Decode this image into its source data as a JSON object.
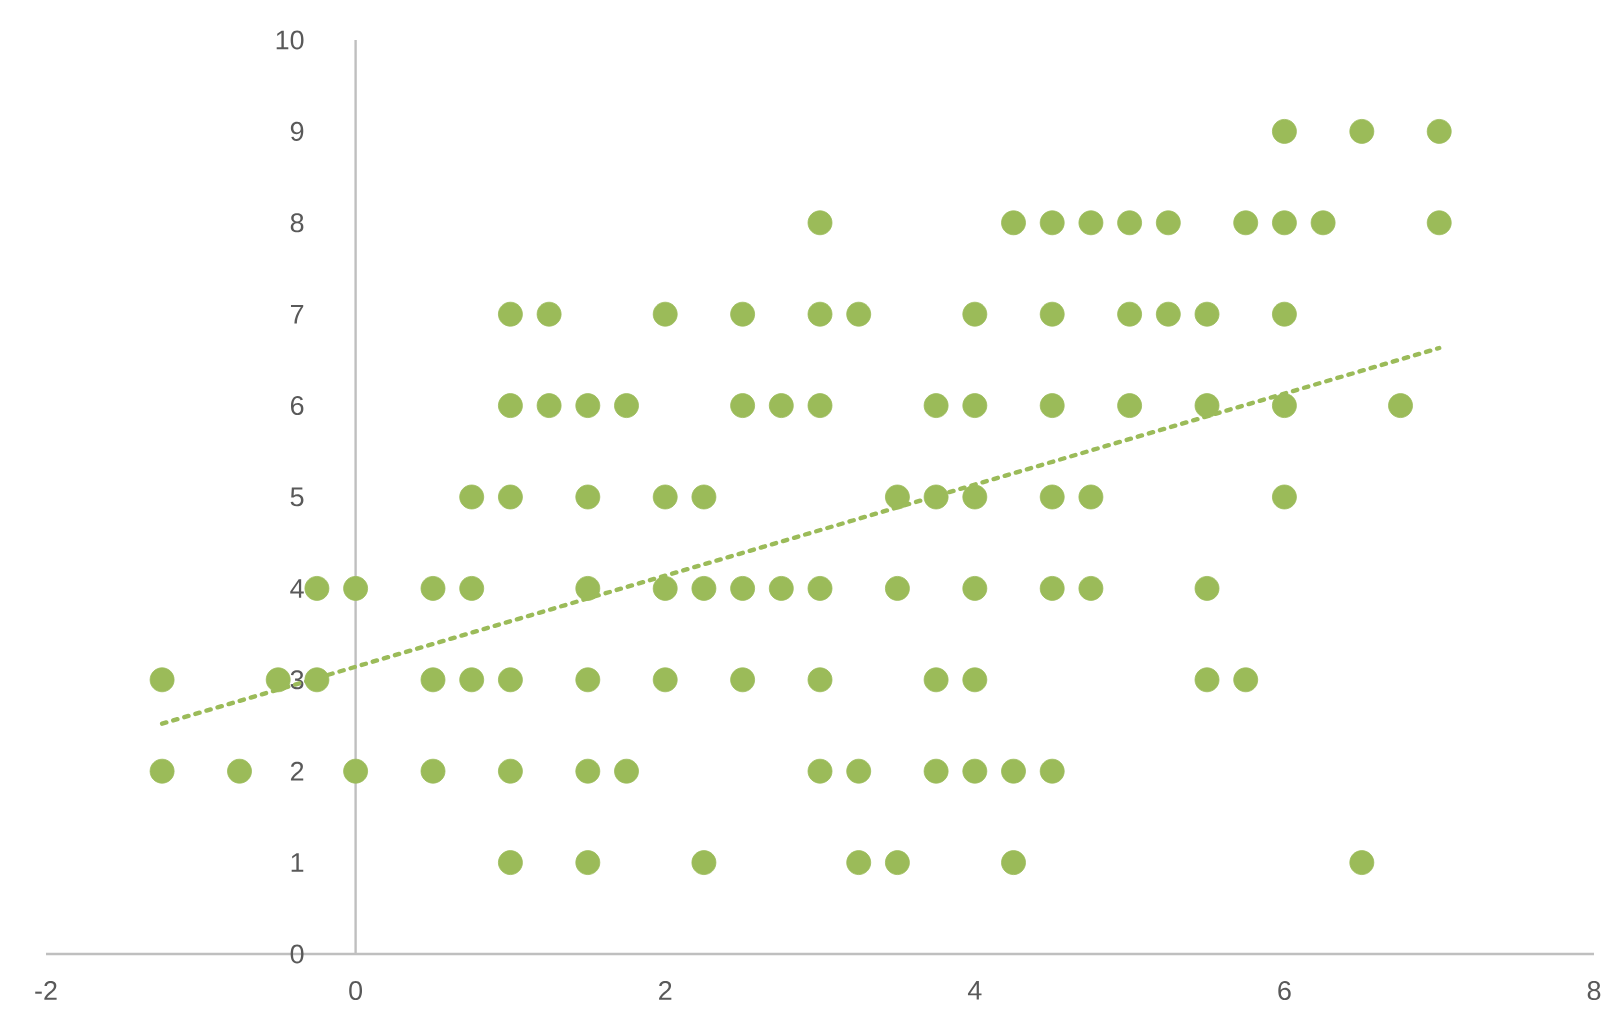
{
  "chart_data": {
    "type": "scatter",
    "xlim": [
      -2,
      8
    ],
    "ylim": [
      0,
      10
    ],
    "xticks": [
      -2,
      0,
      2,
      4,
      6,
      8
    ],
    "yticks": [
      0,
      1,
      2,
      3,
      4,
      5,
      6,
      7,
      8,
      9,
      10
    ],
    "grid": false,
    "marker": "circle",
    "series": [
      {
        "color": "#9bbb59",
        "x": [
          6,
          6.5,
          7,
          3,
          4.25,
          4.5,
          4.75,
          5,
          5.25,
          5.75,
          6,
          6.25,
          7,
          1,
          1.25,
          2,
          2.5,
          3,
          3.25,
          4,
          4.5,
          5,
          5.25,
          5.5,
          6,
          1,
          1.25,
          1.5,
          1.75,
          2.5,
          2.75,
          3,
          3.75,
          4,
          4.5,
          5,
          5.5,
          6,
          6.75,
          0.75,
          1,
          1.5,
          2,
          2.25,
          3.5,
          3.75,
          4,
          4.5,
          4.75,
          6,
          -0.25,
          0,
          0.5,
          0.75,
          1.5,
          2,
          2.25,
          2.5,
          2.75,
          3,
          3.5,
          4,
          4.5,
          4.75,
          5.5,
          -1.25,
          -0.5,
          -0.25,
          0.5,
          0.75,
          1,
          1.5,
          2,
          2.5,
          3,
          3.75,
          4,
          5.5,
          5.75,
          -1.25,
          -0.75,
          0,
          0.5,
          1,
          1.5,
          1.75,
          3,
          3.25,
          3.75,
          4,
          4.25,
          4.5,
          1,
          1.5,
          2.25,
          3.25,
          3.5,
          4.25,
          6.5
        ],
        "values": [
          9,
          9,
          9,
          8,
          8,
          8,
          8,
          8,
          8,
          8,
          8,
          8,
          8,
          7,
          7,
          7,
          7,
          7,
          7,
          7,
          7,
          7,
          7,
          7,
          7,
          6,
          6,
          6,
          6,
          6,
          6,
          6,
          6,
          6,
          6,
          6,
          6,
          6,
          6,
          5,
          5,
          5,
          5,
          5,
          5,
          5,
          5,
          5,
          5,
          5,
          4,
          4,
          4,
          4,
          4,
          4,
          4,
          4,
          4,
          4,
          4,
          4,
          4,
          4,
          4,
          3,
          3,
          3,
          3,
          3,
          3,
          3,
          3,
          3,
          3,
          3,
          3,
          3,
          3,
          2,
          2,
          2,
          2,
          2,
          2,
          2,
          2,
          2,
          2,
          2,
          2,
          2,
          1,
          1,
          1,
          1,
          1,
          1,
          1
        ]
      },
      {
        "type": "line",
        "color": "#9bbb59",
        "x": [
          -1.25,
          7
        ],
        "values": [
          2.52,
          6.63
        ],
        "marker": "none",
        "line_style": "dotted"
      }
    ]
  }
}
